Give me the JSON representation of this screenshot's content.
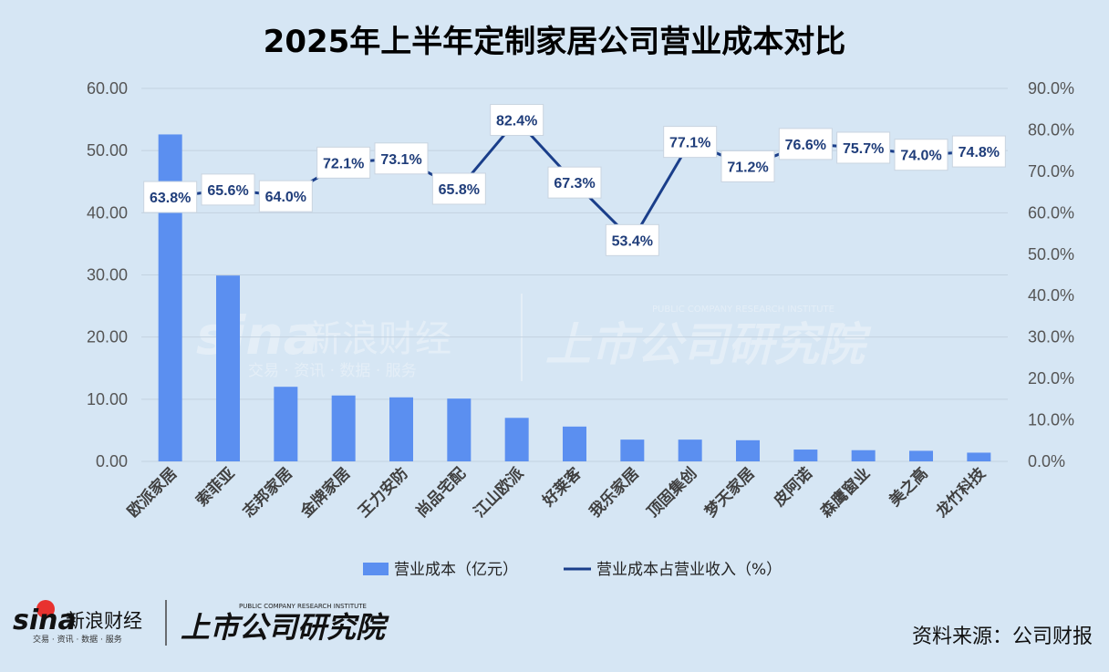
{
  "header": {
    "title": "2025年上半年定制家居公司营业成本对比"
  },
  "footer": {
    "source": "资料来源：公司财报",
    "sina_text": "sina",
    "sina_brand": "新浪财经",
    "sina_slogan": "交易 · 资讯 · 数据 · 服务",
    "institute_name": "上市公司研究院",
    "institute_en": "PUBLIC COMPANY RESEARCH INSTITUTE"
  },
  "colors": {
    "bar": "#5b8ff0",
    "line": "#1a3e8a",
    "background": "#d6e6f4"
  },
  "chart_data": {
    "type": "bar",
    "title": "2025年上半年定制家居公司营业成本对比",
    "categories": [
      "欧派家居",
      "索菲亚",
      "志邦家居",
      "金牌家居",
      "王力安防",
      "尚品宅配",
      "江山欧派",
      "好莱客",
      "我乐家居",
      "顶固集创",
      "梦天家居",
      "皮阿诺",
      "森鹰窗业",
      "美之高",
      "龙竹科技"
    ],
    "series": [
      {
        "name": "营业成本（亿元）",
        "type": "bar",
        "axis": "left",
        "values": [
          52.6,
          29.9,
          12.0,
          10.6,
          10.3,
          10.1,
          7.0,
          5.6,
          3.5,
          3.5,
          3.4,
          1.9,
          1.8,
          1.7,
          1.4
        ]
      },
      {
        "name": "营业成本占营业收入（%）",
        "type": "line",
        "axis": "right",
        "values": [
          63.8,
          65.6,
          64.0,
          72.1,
          73.1,
          65.8,
          82.4,
          67.3,
          53.4,
          77.1,
          71.2,
          76.6,
          75.7,
          74.0,
          74.8
        ],
        "labels": [
          "63.8%",
          "65.6%",
          "64.0%",
          "72.1%",
          "73.1%",
          "65.8%",
          "82.4%",
          "67.3%",
          "53.4%",
          "77.1%",
          "71.2%",
          "76.6%",
          "75.7%",
          "74.0%",
          "74.8%"
        ]
      }
    ],
    "y_left": {
      "min": 0,
      "max": 60,
      "step": 10,
      "tick_labels": [
        "0.00",
        "10.00",
        "20.00",
        "30.00",
        "40.00",
        "50.00",
        "60.00"
      ]
    },
    "y_right": {
      "min": 0,
      "max": 90,
      "step": 10,
      "tick_labels": [
        "0.0%",
        "10.0%",
        "20.0%",
        "30.0%",
        "40.0%",
        "50.0%",
        "60.0%",
        "70.0%",
        "80.0%",
        "90.0%"
      ]
    },
    "grid": true,
    "legend_position": "bottom"
  }
}
